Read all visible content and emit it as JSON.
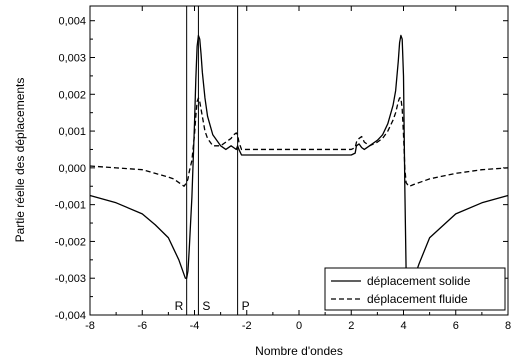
{
  "chart_data": {
    "type": "line",
    "title": "",
    "xlabel": "Nombre d'ondes",
    "ylabel": "Partie réelle des déplacements",
    "xlim": [
      -8,
      8
    ],
    "ylim": [
      -0.004,
      0.0044
    ],
    "x_ticks": [
      -8,
      -6,
      -4,
      -2,
      0,
      2,
      4,
      6,
      8
    ],
    "x_tick_labels": [
      "-8",
      "-6",
      "-4",
      "-2",
      "0",
      "2",
      "4",
      "6",
      "8"
    ],
    "y_ticks": [
      -0.004,
      -0.003,
      -0.002,
      -0.001,
      0.0,
      0.001,
      0.002,
      0.003,
      0.004
    ],
    "y_tick_labels": [
      "-0,004",
      "-0,003",
      "-0,002",
      "-0,001",
      "0,000",
      "0,001",
      "0,002",
      "0,003",
      "0,004"
    ],
    "grid": false,
    "legend_position": "bottom-right",
    "vertical_lines": [
      {
        "x": -4.3,
        "label": "R"
      },
      {
        "x": -3.85,
        "label": "S"
      },
      {
        "x": -2.35,
        "label": "P"
      }
    ],
    "series": [
      {
        "name": "déplacement solide",
        "style": "solid",
        "x": [
          -8,
          -7,
          -6,
          -5.5,
          -5,
          -4.8,
          -4.6,
          -4.5,
          -4.4,
          -4.35,
          -4.3,
          -4.25,
          -4.2,
          -4.1,
          -4.0,
          -3.95,
          -3.9,
          -3.85,
          -3.8,
          -3.75,
          -3.7,
          -3.6,
          -3.5,
          -3.3,
          -3.0,
          -2.8,
          -2.6,
          -2.5,
          -2.4,
          -2.35,
          -2.3,
          -2.2,
          -2.0,
          -1.0,
          0.0,
          1.0,
          2.0,
          2.15,
          2.2,
          2.3,
          2.4,
          2.5,
          2.7,
          3.0,
          3.2,
          3.4,
          3.6,
          3.7,
          3.8,
          3.85,
          3.9,
          3.95,
          4.0,
          4.05,
          4.1,
          4.2,
          4.3,
          4.4,
          4.6,
          5.0,
          6.0,
          7.0,
          8.0
        ],
        "y": [
          -0.00075,
          -0.00095,
          -0.00125,
          -0.00155,
          -0.0019,
          -0.0022,
          -0.0025,
          -0.0027,
          -0.0029,
          -0.003,
          -0.003,
          -0.0028,
          -0.0022,
          -0.0008,
          0.0012,
          0.0024,
          0.0033,
          0.0036,
          0.0035,
          0.0031,
          0.0026,
          0.0019,
          0.0014,
          0.0009,
          0.0006,
          0.0005,
          0.0006,
          0.00055,
          0.0005,
          0.0006,
          0.0005,
          0.00035,
          0.00035,
          0.00035,
          0.00035,
          0.00035,
          0.00035,
          0.0004,
          0.0006,
          0.00065,
          0.00055,
          0.0005,
          0.0006,
          0.00075,
          0.0009,
          0.0012,
          0.0017,
          0.0021,
          0.0029,
          0.0034,
          0.0036,
          0.0035,
          0.0025,
          -0.0005,
          -0.0028,
          -0.0037,
          -0.0033,
          -0.003,
          -0.0026,
          -0.0019,
          -0.00125,
          -0.00095,
          -0.00075
        ]
      },
      {
        "name": "déplacement fluide",
        "style": "dashed",
        "x": [
          -8,
          -7,
          -6,
          -5.5,
          -5,
          -4.8,
          -4.6,
          -4.5,
          -4.4,
          -4.35,
          -4.3,
          -4.25,
          -4.2,
          -4.1,
          -4.0,
          -3.95,
          -3.9,
          -3.85,
          -3.8,
          -3.75,
          -3.7,
          -3.6,
          -3.5,
          -3.3,
          -3.0,
          -2.8,
          -2.6,
          -2.5,
          -2.4,
          -2.35,
          -2.3,
          -2.2,
          -2.0,
          -1.0,
          0.0,
          1.0,
          2.0,
          2.15,
          2.2,
          2.3,
          2.4,
          2.5,
          2.7,
          3.0,
          3.2,
          3.4,
          3.6,
          3.7,
          3.8,
          3.85,
          3.9,
          3.95,
          4.0,
          4.05,
          4.1,
          4.2,
          4.3,
          4.4,
          4.6,
          5.0,
          6.0,
          7.0,
          8.0
        ],
        "y": [
          5e-05,
          0.0,
          -5e-05,
          -0.00015,
          -0.00025,
          -0.0003,
          -0.0004,
          -0.00045,
          -0.0005,
          -0.00045,
          -0.0004,
          -0.0003,
          -0.0001,
          0.0002,
          0.0009,
          0.0014,
          0.0018,
          0.0019,
          0.0018,
          0.0016,
          0.0014,
          0.001,
          0.0008,
          0.0006,
          0.0006,
          0.0007,
          0.0008,
          0.0009,
          0.00095,
          0.0009,
          0.0007,
          0.0005,
          0.0005,
          0.0005,
          0.0005,
          0.0005,
          0.0005,
          0.00055,
          0.0007,
          0.0008,
          0.00085,
          0.0007,
          0.0006,
          0.0007,
          0.0008,
          0.001,
          0.0013,
          0.0015,
          0.0018,
          0.0019,
          0.0019,
          0.0016,
          0.0009,
          0.0,
          -0.0004,
          -0.0005,
          -0.00048,
          -0.00045,
          -0.0004,
          -0.0003,
          -0.00015,
          -5e-05,
          0.0
        ]
      }
    ]
  }
}
